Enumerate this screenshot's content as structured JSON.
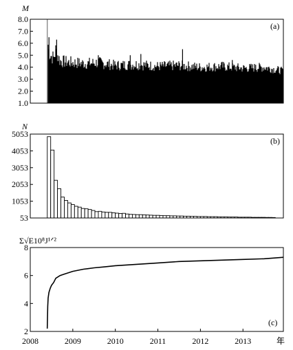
{
  "chart_data": [
    {
      "panel": "(a)",
      "type": "bar",
      "ylabel": "M",
      "ylim": [
        1.0,
        8.0
      ],
      "yticks": [
        "8.0",
        "7.0",
        "6.0",
        "5.0",
        "4.0",
        "3.0",
        "2.0",
        "1.0"
      ],
      "xlim": [
        2008.0,
        2013.95
      ],
      "envelope": {
        "x": [
          2008.4,
          2008.43,
          2008.46,
          2008.5,
          2008.55,
          2008.6,
          2008.7,
          2008.8,
          2009.0,
          2009.3,
          2009.6,
          2010.0,
          2010.5,
          2011.0,
          2011.5,
          2012.0,
          2012.5,
          2013.0,
          2013.5,
          2013.95
        ],
        "ymax": [
          8.0,
          6.3,
          5.9,
          5.6,
          5.4,
          6.2,
          5.1,
          5.0,
          4.9,
          4.8,
          4.9,
          4.6,
          4.7,
          4.5,
          4.6,
          4.4,
          4.5,
          4.3,
          4.4,
          4.0
        ]
      },
      "peaks": [
        {
          "x": 2008.4,
          "y": 8.0
        },
        {
          "x": 2008.44,
          "y": 6.5
        },
        {
          "x": 2008.62,
          "y": 6.3
        },
        {
          "x": 2009.6,
          "y": 5.0
        },
        {
          "x": 2010.35,
          "y": 5.0
        },
        {
          "x": 2010.6,
          "y": 5.1
        },
        {
          "x": 2011.58,
          "y": 5.5
        },
        {
          "x": 2012.75,
          "y": 4.6
        },
        {
          "x": 2013.3,
          "y": 4.2
        }
      ]
    },
    {
      "panel": "(b)",
      "type": "bar",
      "ylabel": "N",
      "ylim": [
        53,
        5053
      ],
      "yticks": [
        "5053",
        "4053",
        "3053",
        "2053",
        "1053",
        "53"
      ],
      "xlim": [
        2008.0,
        2013.95
      ],
      "bin_width": 0.08,
      "bin_start": 2008.4,
      "values": [
        4900,
        4100,
        2300,
        1800,
        1300,
        1100,
        950,
        850,
        750,
        700,
        620,
        600,
        560,
        500,
        430,
        450,
        410,
        390,
        390,
        360,
        340,
        320,
        330,
        290,
        270,
        260,
        250,
        250,
        240,
        230,
        220,
        210,
        210,
        200,
        190,
        190,
        180,
        180,
        170,
        170,
        160,
        160,
        150,
        150,
        140,
        140,
        140,
        130,
        130,
        130,
        120,
        120,
        120,
        110,
        110,
        110,
        100,
        100,
        100,
        100,
        90,
        90,
        90,
        90,
        85,
        85,
        80
      ]
    },
    {
      "panel": "(c)",
      "type": "line",
      "ylabel": "Σ√E10⁸J¹ᐟ²",
      "ylim": [
        2,
        8
      ],
      "yticks": [
        "8",
        "6",
        "4",
        "2"
      ],
      "xlim": [
        2008.0,
        2013.95
      ],
      "xticks": [
        "2008",
        "2009",
        "2010",
        "2011",
        "2012",
        "2013"
      ],
      "x_unit": "年",
      "x": [
        2008.4,
        2008.41,
        2008.42,
        2008.44,
        2008.47,
        2008.5,
        2008.55,
        2008.6,
        2008.7,
        2008.8,
        2009.0,
        2009.25,
        2009.5,
        2009.75,
        2010.0,
        2010.5,
        2011.0,
        2011.5,
        2012.0,
        2012.5,
        2013.0,
        2013.5,
        2013.95
      ],
      "y": [
        2.2,
        3.8,
        4.4,
        4.8,
        5.1,
        5.3,
        5.5,
        5.8,
        6.0,
        6.1,
        6.3,
        6.45,
        6.55,
        6.62,
        6.7,
        6.8,
        6.9,
        7.0,
        7.05,
        7.1,
        7.15,
        7.2,
        7.3
      ]
    }
  ]
}
